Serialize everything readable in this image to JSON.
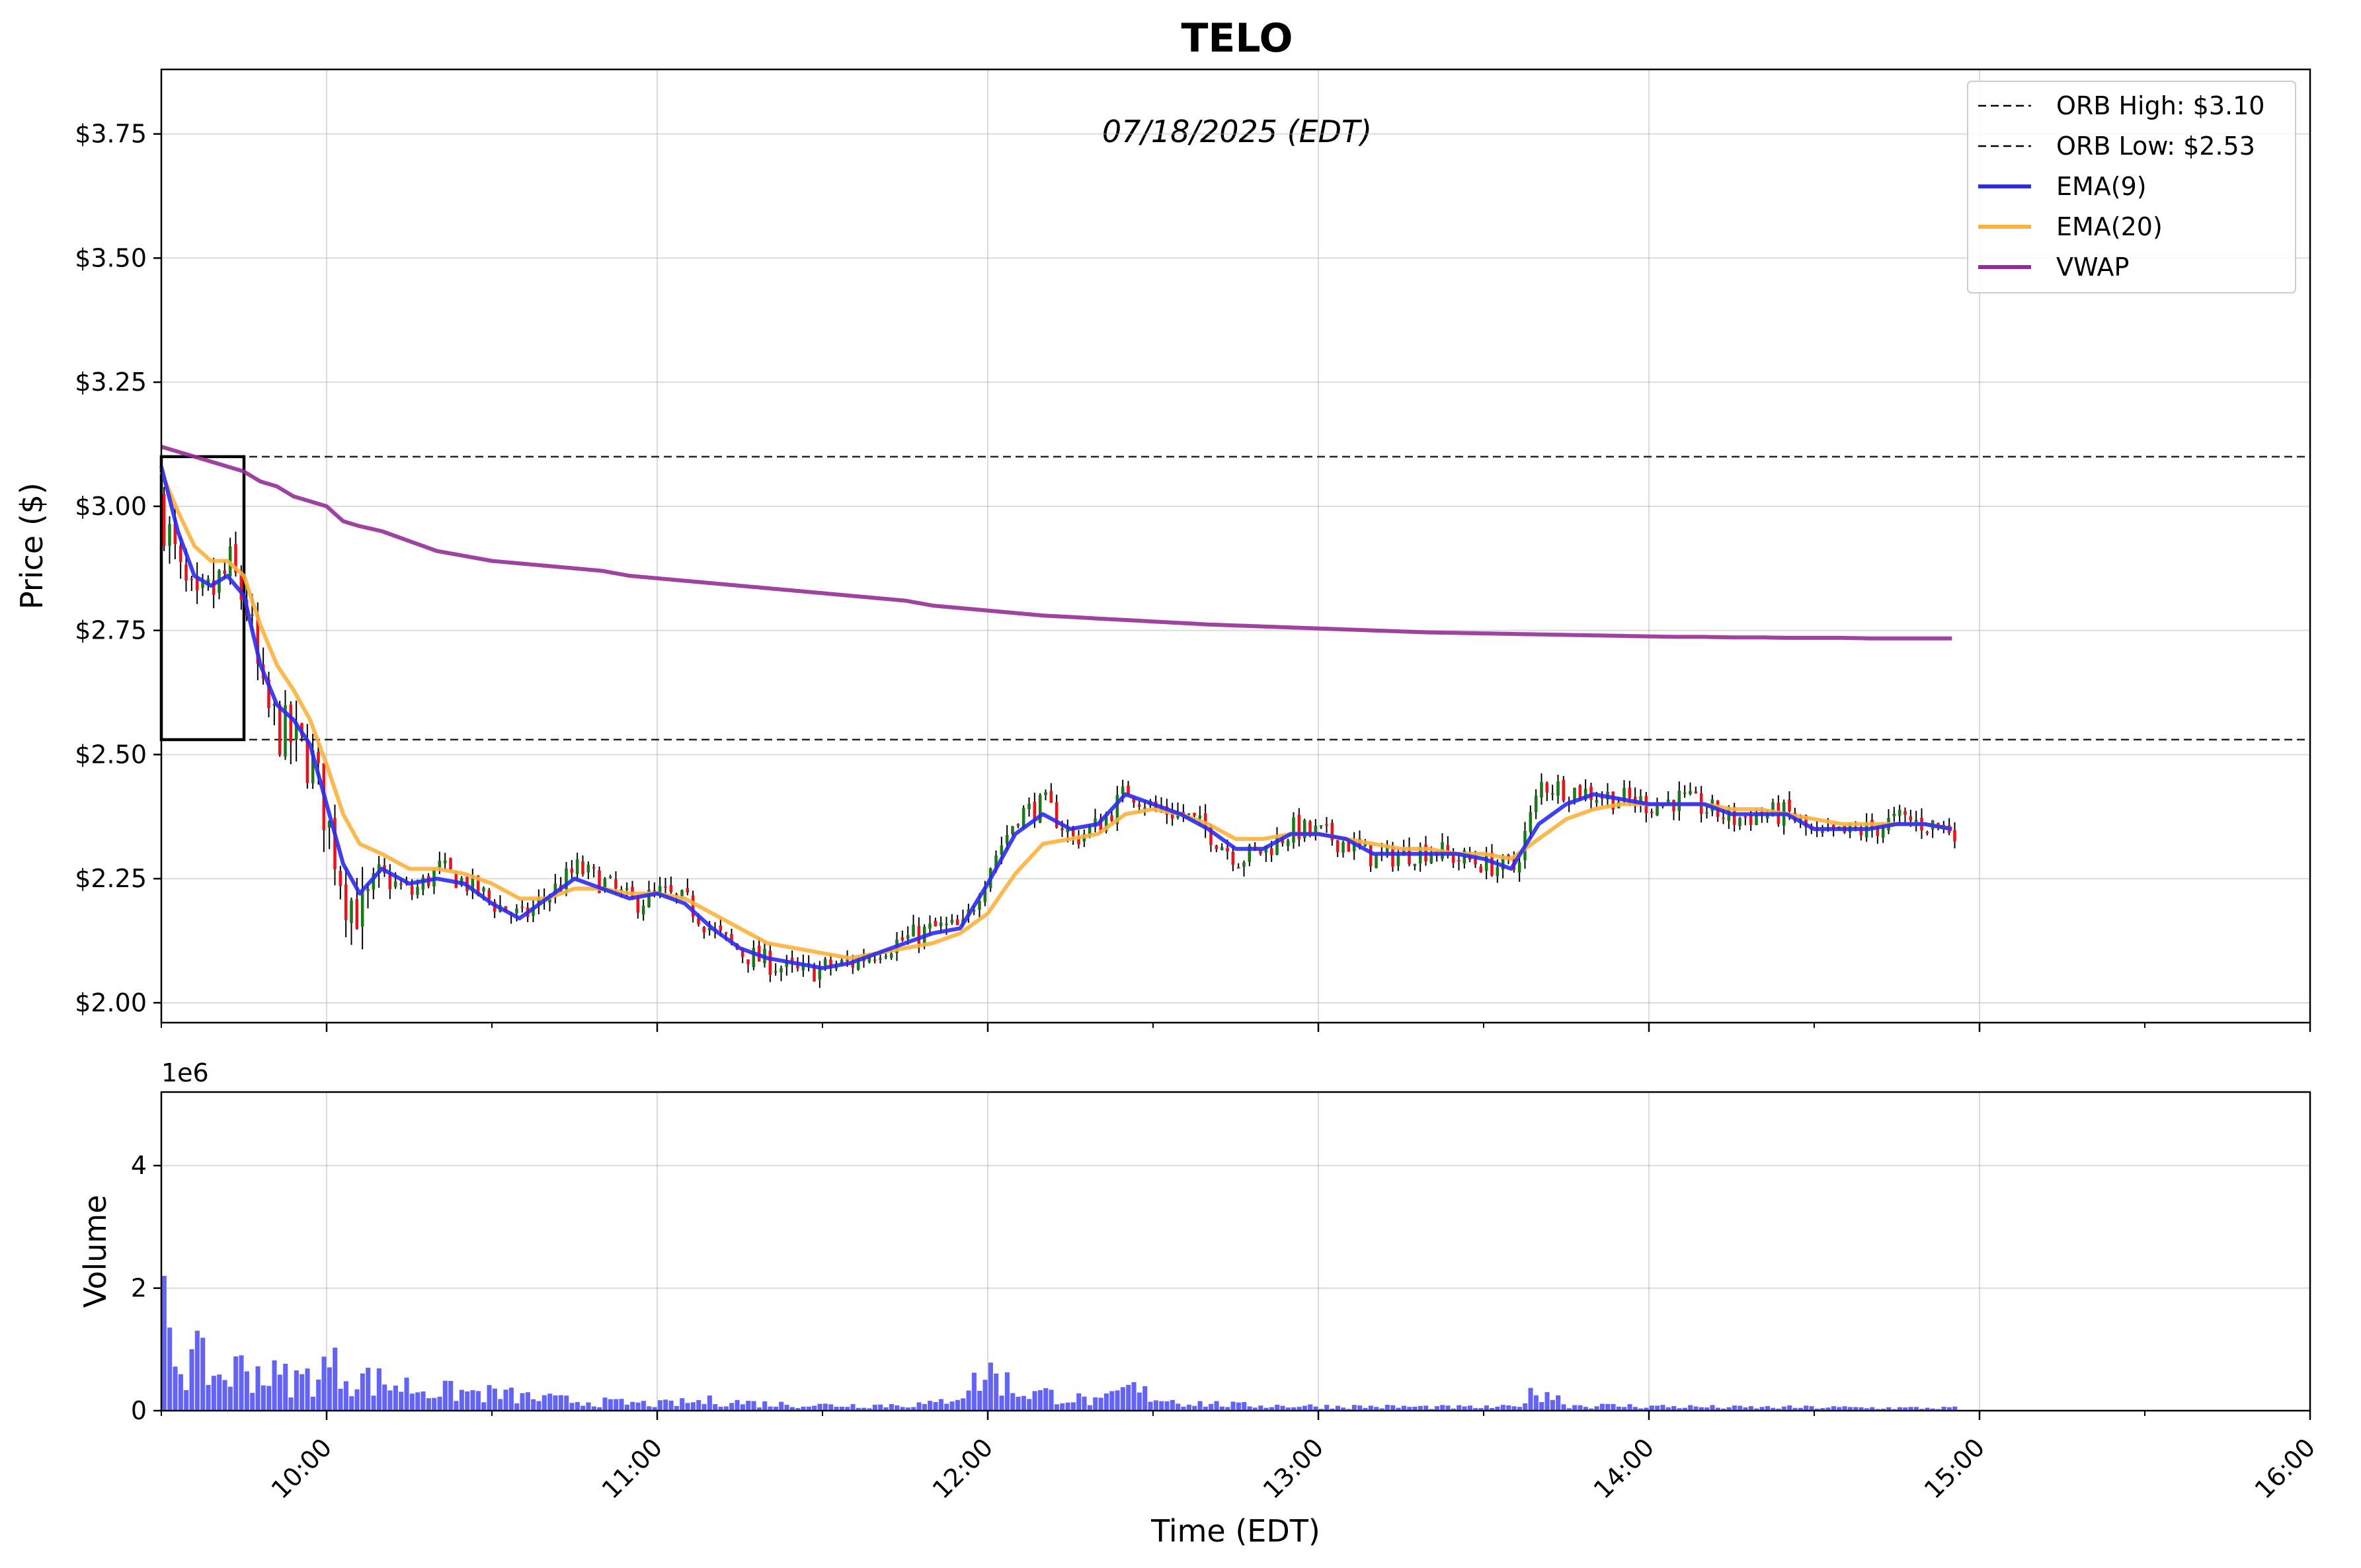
{
  "chart_data": [
    {
      "type": "candlestick",
      "title": "TELO",
      "subtitle": "07/18/2025 (EDT)",
      "ylabel": "Price ($)",
      "xlabel": "",
      "ylim": [
        1.96,
        3.88
      ],
      "xlim": [
        "09:30",
        "16:00"
      ],
      "y_ticks": [
        2.0,
        2.25,
        2.5,
        2.75,
        3.0,
        3.25,
        3.5,
        3.75
      ],
      "y_tick_labels": [
        "$2.00",
        "$2.25",
        "$2.50",
        "$2.75",
        "$3.00",
        "$3.25",
        "$3.50",
        "$3.75"
      ],
      "grid": true,
      "legend_placement": "upper right",
      "legend": [
        {
          "label": "ORB High: $3.10",
          "color": "#000000",
          "style": "dashed"
        },
        {
          "label": "ORB Low: $2.53",
          "color": "#000000",
          "style": "dashed"
        },
        {
          "label": "EMA(9)",
          "color": "#2b2bf0",
          "style": "solid"
        },
        {
          "label": "EMA(20)",
          "color": "#fbb13c",
          "style": "solid"
        },
        {
          "label": "VWAP",
          "color": "#952d98",
          "style": "solid"
        }
      ],
      "orb": {
        "high": 3.1,
        "low": 2.53,
        "box_start": "09:30",
        "box_end": "09:45"
      },
      "candle_colors": {
        "up": "#1a7a1a",
        "down": "#e8141c",
        "wick": "#000000"
      },
      "anchors": {
        "times": [
          "09:30",
          "09:33",
          "09:36",
          "09:39",
          "09:42",
          "09:45",
          "09:48",
          "09:51",
          "09:54",
          "09:57",
          "10:00",
          "10:03",
          "10:06",
          "10:10",
          "10:15",
          "10:20",
          "10:25",
          "10:30",
          "10:35",
          "10:40",
          "10:45",
          "10:50",
          "10:55",
          "11:00",
          "11:05",
          "11:10",
          "11:15",
          "11:20",
          "11:25",
          "11:30",
          "11:35",
          "11:40",
          "11:45",
          "11:50",
          "11:55",
          "12:00",
          "12:05",
          "12:10",
          "12:15",
          "12:20",
          "12:25",
          "12:30",
          "12:35",
          "12:40",
          "12:45",
          "12:50",
          "12:55",
          "13:00",
          "13:05",
          "13:10",
          "13:15",
          "13:20",
          "13:25",
          "13:30",
          "13:35",
          "13:40",
          "13:45",
          "13:50",
          "13:55",
          "14:00",
          "14:05",
          "14:10",
          "14:15",
          "14:20",
          "14:25",
          "14:30",
          "14:35",
          "14:40",
          "14:45",
          "14:50",
          "14:55"
        ],
        "close": [
          2.98,
          2.85,
          2.78,
          2.83,
          2.87,
          2.8,
          2.6,
          2.55,
          2.52,
          2.48,
          2.35,
          2.22,
          2.18,
          2.25,
          2.22,
          2.27,
          2.24,
          2.2,
          2.17,
          2.22,
          2.27,
          2.24,
          2.2,
          2.22,
          2.2,
          2.14,
          2.1,
          2.08,
          2.06,
          2.07,
          2.08,
          2.11,
          2.13,
          2.15,
          2.15,
          2.28,
          2.38,
          2.4,
          2.33,
          2.36,
          2.43,
          2.39,
          2.38,
          2.34,
          2.29,
          2.31,
          2.35,
          2.34,
          2.32,
          2.29,
          2.3,
          2.31,
          2.29,
          2.28,
          2.27,
          2.44,
          2.43,
          2.42,
          2.41,
          2.4,
          2.41,
          2.39,
          2.37,
          2.38,
          2.38,
          2.33,
          2.34,
          2.35,
          2.37,
          2.36,
          2.35
        ],
        "ema9": [
          3.08,
          2.95,
          2.86,
          2.84,
          2.86,
          2.82,
          2.68,
          2.6,
          2.57,
          2.52,
          2.4,
          2.28,
          2.22,
          2.27,
          2.24,
          2.25,
          2.24,
          2.2,
          2.17,
          2.21,
          2.25,
          2.23,
          2.21,
          2.22,
          2.2,
          2.15,
          2.11,
          2.09,
          2.08,
          2.07,
          2.08,
          2.1,
          2.12,
          2.14,
          2.15,
          2.24,
          2.34,
          2.38,
          2.35,
          2.36,
          2.42,
          2.4,
          2.38,
          2.35,
          2.31,
          2.31,
          2.34,
          2.34,
          2.33,
          2.3,
          2.3,
          2.3,
          2.3,
          2.29,
          2.27,
          2.36,
          2.4,
          2.42,
          2.41,
          2.4,
          2.4,
          2.4,
          2.38,
          2.38,
          2.38,
          2.35,
          2.35,
          2.35,
          2.36,
          2.36,
          2.35
        ],
        "ema20": [
          3.07,
          2.99,
          2.92,
          2.89,
          2.89,
          2.86,
          2.76,
          2.68,
          2.63,
          2.57,
          2.48,
          2.38,
          2.32,
          2.3,
          2.27,
          2.27,
          2.26,
          2.24,
          2.21,
          2.21,
          2.23,
          2.23,
          2.22,
          2.22,
          2.21,
          2.18,
          2.15,
          2.12,
          2.11,
          2.1,
          2.09,
          2.1,
          2.11,
          2.12,
          2.14,
          2.18,
          2.26,
          2.32,
          2.33,
          2.34,
          2.38,
          2.39,
          2.38,
          2.36,
          2.33,
          2.33,
          2.34,
          2.34,
          2.33,
          2.32,
          2.31,
          2.31,
          2.3,
          2.3,
          2.29,
          2.33,
          2.37,
          2.39,
          2.4,
          2.4,
          2.4,
          2.4,
          2.39,
          2.39,
          2.38,
          2.37,
          2.36,
          2.36,
          2.36,
          2.36,
          2.35
        ],
        "vwap": [
          3.12,
          3.11,
          3.1,
          3.09,
          3.08,
          3.07,
          3.05,
          3.04,
          3.02,
          3.01,
          3.0,
          2.97,
          2.96,
          2.95,
          2.93,
          2.91,
          2.9,
          2.89,
          2.885,
          2.88,
          2.875,
          2.87,
          2.86,
          2.855,
          2.85,
          2.845,
          2.84,
          2.835,
          2.83,
          2.825,
          2.82,
          2.815,
          2.81,
          2.8,
          2.795,
          2.79,
          2.785,
          2.78,
          2.777,
          2.774,
          2.771,
          2.768,
          2.765,
          2.762,
          2.76,
          2.758,
          2.756,
          2.754,
          2.752,
          2.75,
          2.748,
          2.746,
          2.745,
          2.744,
          2.743,
          2.742,
          2.741,
          2.74,
          2.739,
          2.738,
          2.737,
          2.737,
          2.736,
          2.736,
          2.735,
          2.735,
          2.735,
          2.734,
          2.734,
          2.734,
          2.734
        ]
      },
      "volume_anchors": {
        "times": [
          "09:30",
          "09:33",
          "09:36",
          "09:40",
          "09:45",
          "09:50",
          "09:55",
          "10:00",
          "10:05",
          "10:10",
          "10:20",
          "10:30",
          "10:40",
          "10:50",
          "11:00",
          "11:10",
          "11:20",
          "11:30",
          "11:40",
          "11:50",
          "11:55",
          "12:00",
          "12:05",
          "12:10",
          "12:20",
          "12:25",
          "12:30",
          "12:35",
          "12:45",
          "13:00",
          "13:15",
          "13:30",
          "13:35",
          "13:40",
          "13:45",
          "13:50",
          "14:00",
          "14:15",
          "14:30",
          "14:45",
          "14:55"
        ],
        "volume": [
          2.2,
          0.8,
          0.9,
          0.6,
          0.8,
          0.6,
          0.55,
          0.8,
          0.6,
          0.5,
          0.35,
          0.3,
          0.2,
          0.15,
          0.12,
          0.18,
          0.12,
          0.1,
          0.1,
          0.12,
          0.35,
          0.7,
          0.35,
          0.3,
          0.15,
          0.4,
          0.25,
          0.15,
          0.1,
          0.08,
          0.07,
          0.06,
          0.07,
          0.4,
          0.1,
          0.09,
          0.08,
          0.06,
          0.06,
          0.05,
          0.05
        ]
      }
    },
    {
      "type": "bar",
      "ylabel": "Volume",
      "xlabel": "Time (EDT)",
      "y_offset_label": "1e6",
      "ylim": [
        0,
        5.2
      ],
      "y_ticks": [
        0,
        2,
        4
      ],
      "y_tick_labels": [
        "0",
        "2",
        "4"
      ],
      "x_ticks": [
        "10:00",
        "11:00",
        "12:00",
        "13:00",
        "14:00",
        "15:00",
        "16:00"
      ],
      "bar_color": "#5b5bf5",
      "grid": true
    }
  ]
}
